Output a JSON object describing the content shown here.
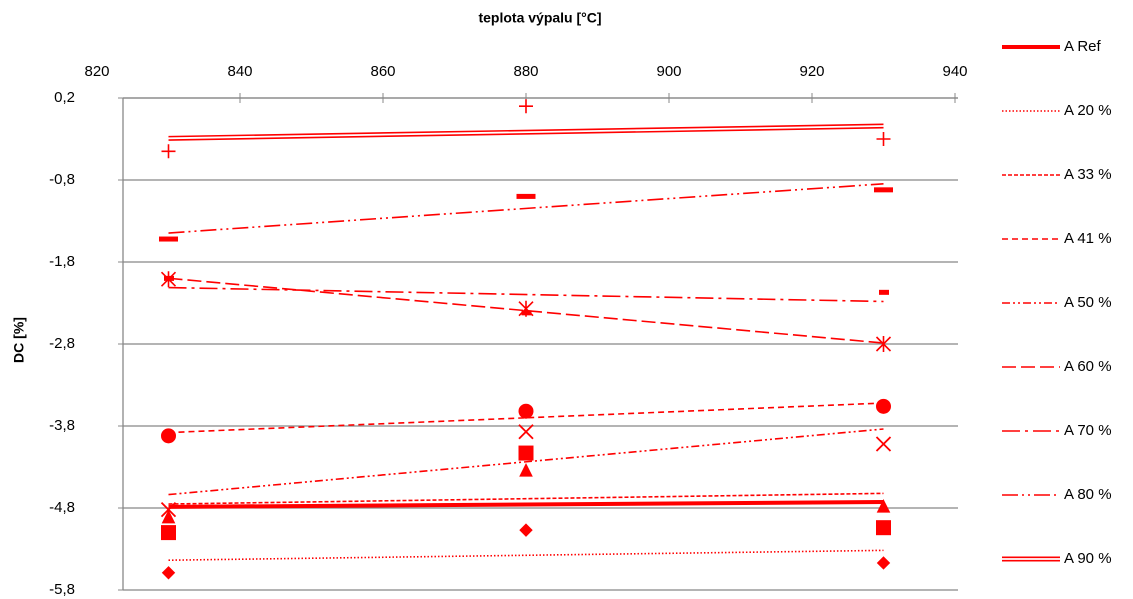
{
  "chart_data": {
    "type": "scatter",
    "title": "teplota výpalu [°C]",
    "y_label": "DC [%]",
    "x": [
      830,
      880,
      930
    ],
    "xlim": [
      820,
      940
    ],
    "xticks": [
      820,
      840,
      860,
      880,
      900,
      920,
      940
    ],
    "ylim": [
      -5.8,
      0.2
    ],
    "yticks": [
      {
        "value": 0.2,
        "label": "0,2"
      },
      {
        "value": -0.8,
        "label": "-0,8"
      },
      {
        "value": -1.8,
        "label": "-1,8"
      },
      {
        "value": -2.8,
        "label": "-2,8"
      },
      {
        "value": -3.8,
        "label": "-3,8"
      },
      {
        "value": -4.8,
        "label": "-4,8"
      },
      {
        "value": -5.8,
        "label": "-5,8"
      }
    ],
    "grid": true,
    "trendline": "linear",
    "legend": "right",
    "series": [
      {
        "name": "A Ref",
        "color": "#ff0000",
        "marker": "square",
        "line_style": "thick",
        "values": [
          -5.1,
          -4.13,
          -5.04
        ]
      },
      {
        "name": "A 20 %",
        "color": "#ff0000",
        "marker": "diamond",
        "line_style": "dotted",
        "values": [
          -5.59,
          -5.07,
          -5.47
        ]
      },
      {
        "name": "A 33 %",
        "color": "#ff0000",
        "marker": "triangle",
        "line_style": "short-dash",
        "values": [
          -4.92,
          -4.35,
          -4.79
        ]
      },
      {
        "name": "A 41 %",
        "color": "#ff0000",
        "marker": "circle",
        "line_style": "dash",
        "values": [
          -3.92,
          -3.62,
          -3.56
        ]
      },
      {
        "name": "A 50 %",
        "color": "#ff0000",
        "marker": "x",
        "line_style": "dash-dot-dot",
        "values": [
          -4.82,
          -3.87,
          -4.02
        ]
      },
      {
        "name": "A 60 %",
        "color": "#ff0000",
        "marker": "asterisk",
        "line_style": "long-dash",
        "values": [
          -2.01,
          -2.37,
          -2.8
        ]
      },
      {
        "name": "A 70 %",
        "color": "#ff0000",
        "marker": "short-bar",
        "line_style": "long-dash-dot",
        "values": [
          -2.0,
          -2.42,
          -2.17
        ]
      },
      {
        "name": "A 80 %",
        "color": "#ff0000",
        "marker": "bar",
        "line_style": "long-dash-dot-dot",
        "values": [
          -1.52,
          -1.0,
          -0.92
        ]
      },
      {
        "name": "A 90 %",
        "color": "#ff0000",
        "marker": "plus",
        "line_style": "double",
        "values": [
          -0.45,
          0.1,
          -0.3
        ]
      }
    ]
  }
}
